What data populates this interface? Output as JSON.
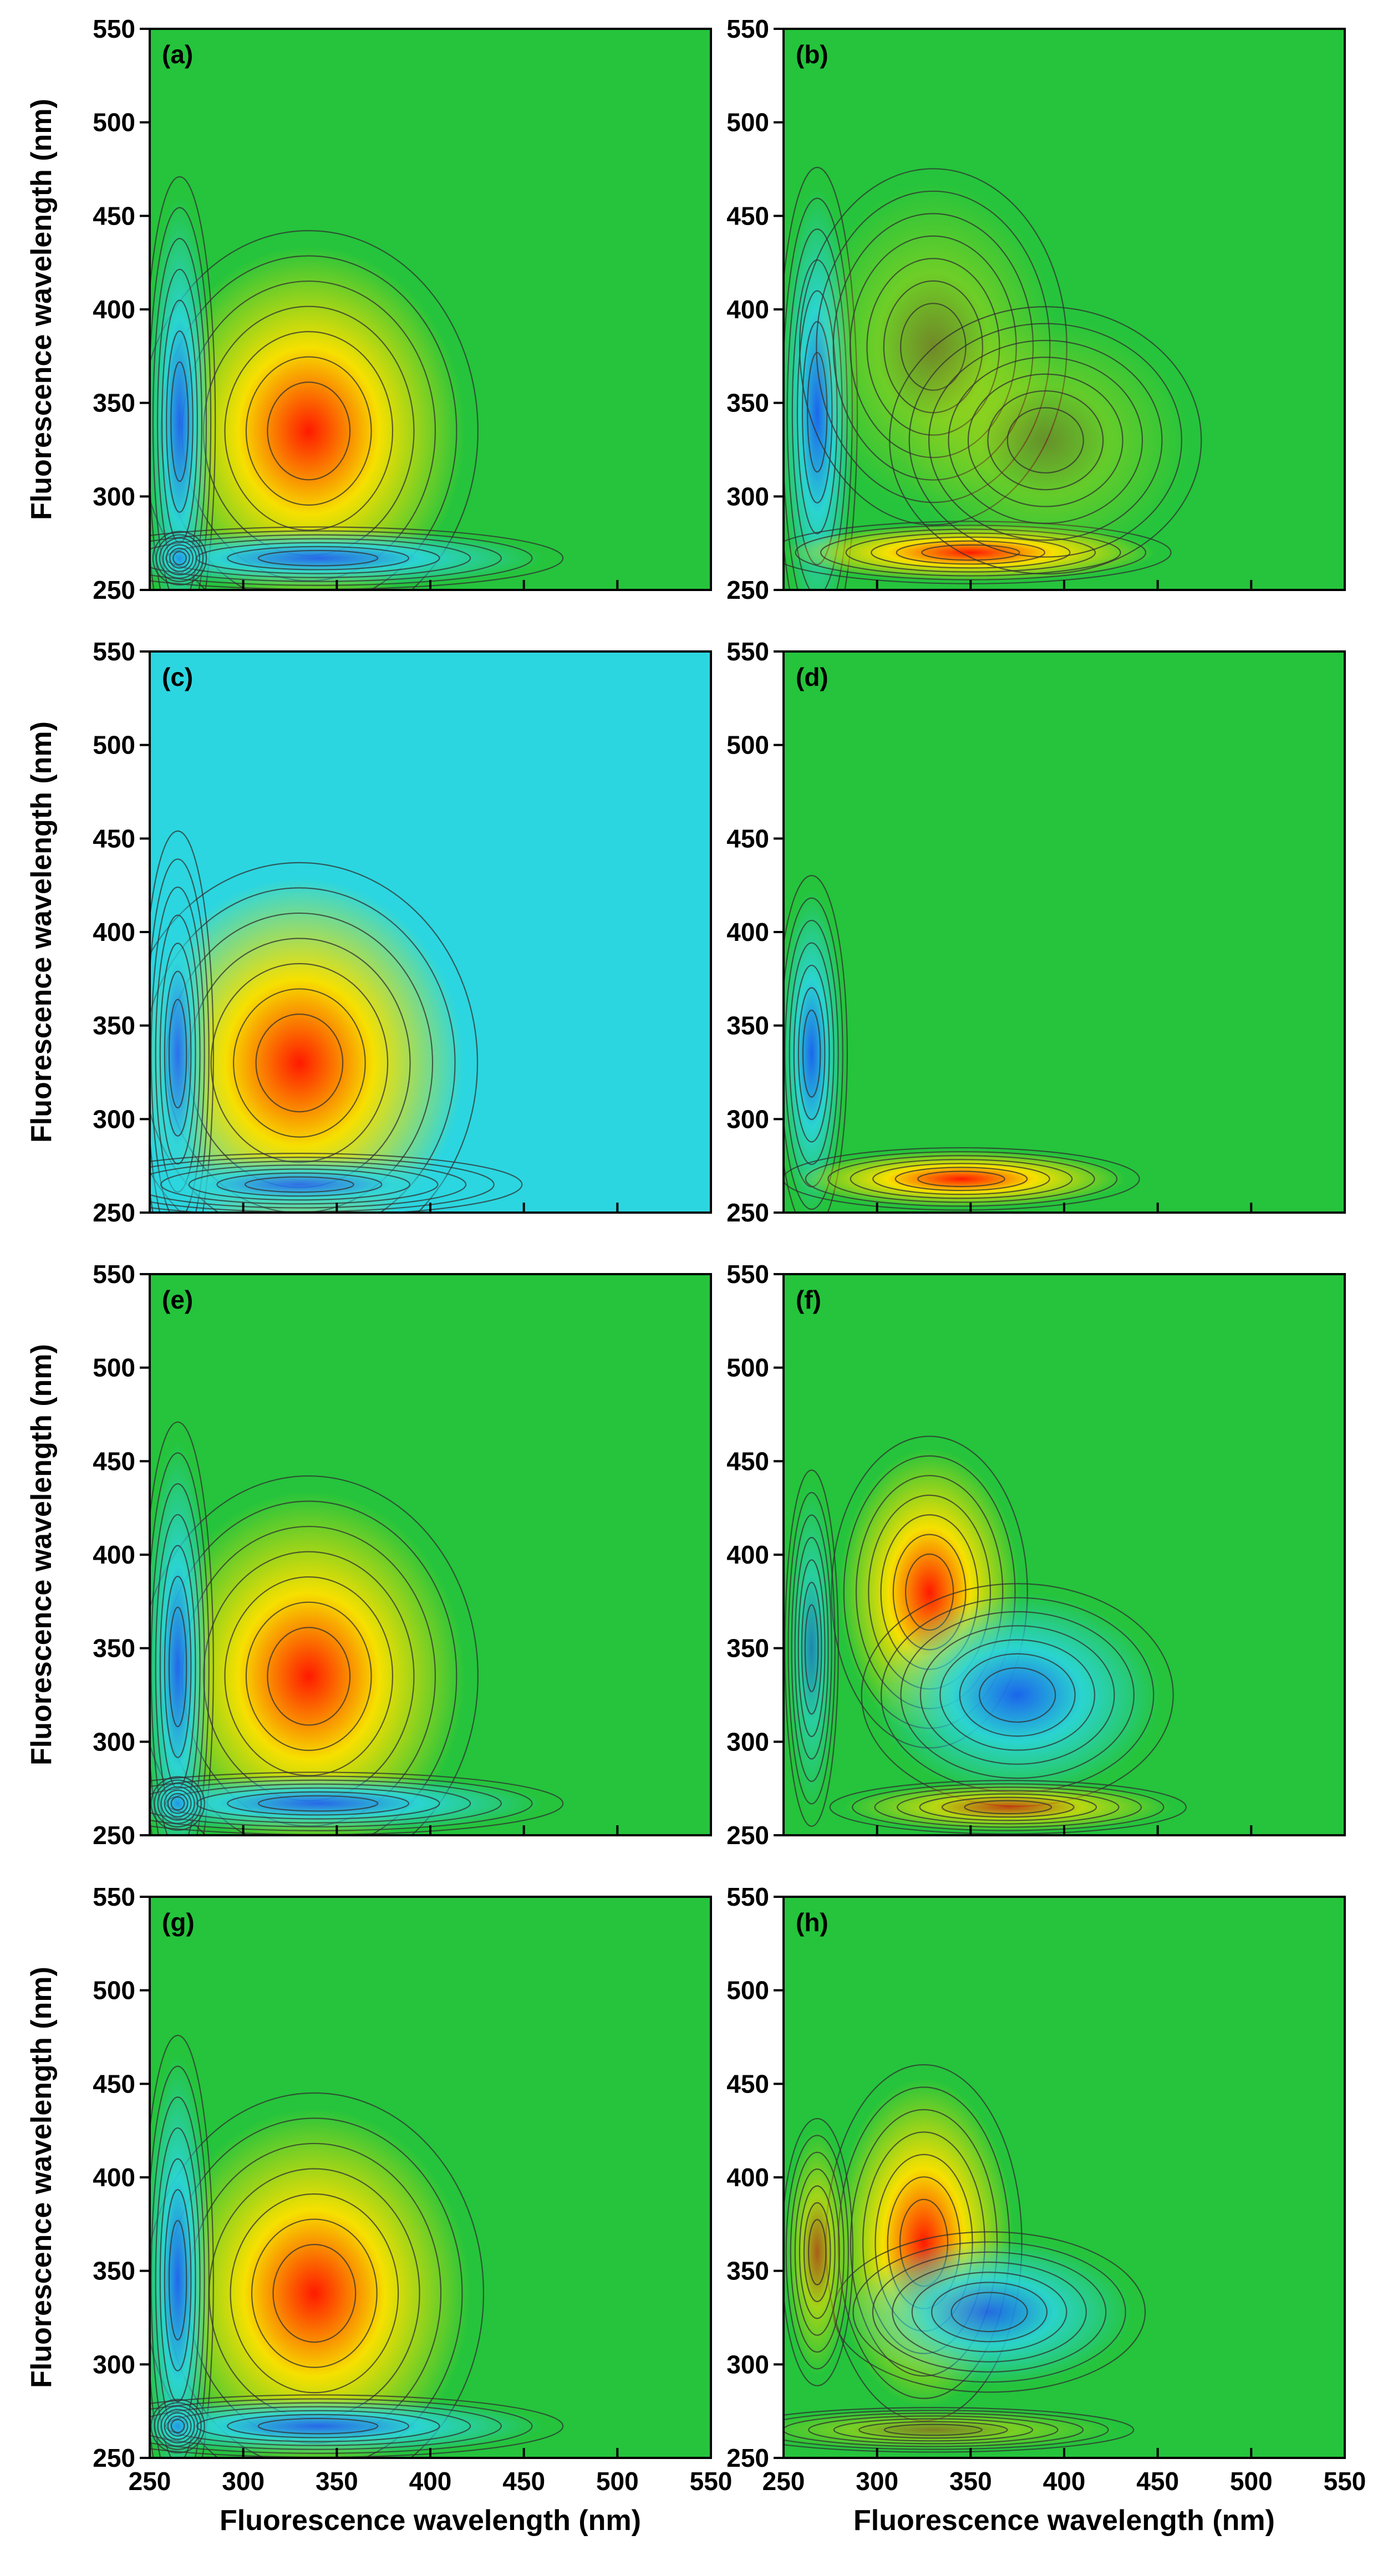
{
  "chart_data": [
    {
      "type": "heatmap",
      "panel": "(a)",
      "colors": [
        "#25c43c",
        "#ff1a00",
        "#f6e000",
        "#1a5cff",
        "#2bd6e0"
      ],
      "xlim": [
        250,
        550
      ],
      "ylim": [
        250,
        550
      ],
      "xticks": [
        250,
        300,
        350,
        400,
        450,
        500,
        550
      ],
      "yticks": [
        250,
        300,
        350,
        400,
        450,
        500,
        550
      ],
      "xlabel": "",
      "ylabel": "Fluorescence wavelength (nm)",
      "features": [
        {
          "sign": "positive",
          "x": 335,
          "y": 335,
          "sx": 38,
          "sy": 45,
          "peak": 1.0
        },
        {
          "sign": "negative",
          "x": 266,
          "y": 340,
          "sx": 8,
          "sy": 55,
          "peak": 0.9
        },
        {
          "sign": "negative",
          "x": 340,
          "y": 267,
          "sx": 55,
          "sy": 7,
          "peak": 0.9
        },
        {
          "sign": "negative",
          "x": 266,
          "y": 267,
          "sx": 6,
          "sy": 6,
          "peak": 0.5
        }
      ]
    },
    {
      "type": "heatmap",
      "panel": "(b)",
      "colors": [
        "#25c43c",
        "#ff1a00",
        "#f6e000",
        "#1a5cff",
        "#2bd6e0"
      ],
      "xlim": [
        250,
        550
      ],
      "ylim": [
        250,
        550
      ],
      "xticks": [
        250,
        300,
        350,
        400,
        450,
        500,
        550
      ],
      "yticks": [
        250,
        300,
        350,
        400,
        450,
        500,
        550
      ],
      "xlabel": "",
      "ylabel": "",
      "features": [
        {
          "sign": "negative",
          "x": 268,
          "y": 345,
          "sx": 9,
          "sy": 55,
          "peak": 0.9
        },
        {
          "sign": "positive",
          "x": 350,
          "y": 270,
          "sx": 45,
          "sy": 7,
          "peak": 1.0
        },
        {
          "sign": "positive",
          "x": 330,
          "y": 380,
          "sx": 30,
          "sy": 40,
          "peak": 0.35
        },
        {
          "sign": "positive",
          "x": 390,
          "y": 330,
          "sx": 35,
          "sy": 30,
          "peak": 0.3
        }
      ]
    },
    {
      "type": "heatmap",
      "panel": "(c)",
      "colors": [
        "#2bd6e0",
        "#ff1a00",
        "#f6e000",
        "#1a5cff",
        "#2bd6e0"
      ],
      "xlim": [
        250,
        550
      ],
      "ylim": [
        250,
        550
      ],
      "xticks": [
        250,
        300,
        350,
        400,
        450,
        500,
        550
      ],
      "yticks": [
        250,
        300,
        350,
        400,
        450,
        500,
        550
      ],
      "xlabel": "",
      "ylabel": "Fluorescence wavelength (nm)",
      "features": [
        {
          "sign": "positive",
          "x": 330,
          "y": 330,
          "sx": 40,
          "sy": 45,
          "peak": 1.0
        },
        {
          "sign": "negative",
          "x": 265,
          "y": 335,
          "sx": 8,
          "sy": 50,
          "peak": 0.85
        },
        {
          "sign": "negative",
          "x": 330,
          "y": 265,
          "sx": 50,
          "sy": 7,
          "peak": 0.85
        }
      ]
    },
    {
      "type": "heatmap",
      "panel": "(d)",
      "colors": [
        "#25c43c",
        "#ff1a00",
        "#f6e000",
        "#1a5cff",
        "#2bd6e0"
      ],
      "xlim": [
        250,
        550
      ],
      "ylim": [
        250,
        550
      ],
      "xticks": [
        250,
        300,
        350,
        400,
        450,
        500,
        550
      ],
      "yticks": [
        250,
        300,
        350,
        400,
        450,
        500,
        550
      ],
      "xlabel": "",
      "ylabel": "",
      "features": [
        {
          "sign": "negative",
          "x": 265,
          "y": 335,
          "sx": 8,
          "sy": 40,
          "peak": 0.9
        },
        {
          "sign": "positive",
          "x": 345,
          "y": 268,
          "sx": 40,
          "sy": 7,
          "peak": 1.0
        }
      ]
    },
    {
      "type": "heatmap",
      "panel": "(e)",
      "colors": [
        "#25c43c",
        "#ff1a00",
        "#f6e000",
        "#1a5cff",
        "#2bd6e0"
      ],
      "xlim": [
        250,
        550
      ],
      "ylim": [
        250,
        550
      ],
      "xticks": [
        250,
        300,
        350,
        400,
        450,
        500,
        550
      ],
      "yticks": [
        250,
        300,
        350,
        400,
        450,
        500,
        550
      ],
      "xlabel": "",
      "ylabel": "Fluorescence wavelength (nm)",
      "features": [
        {
          "sign": "positive",
          "x": 335,
          "y": 335,
          "sx": 38,
          "sy": 45,
          "peak": 1.0
        },
        {
          "sign": "negative",
          "x": 265,
          "y": 340,
          "sx": 8,
          "sy": 55,
          "peak": 0.9
        },
        {
          "sign": "negative",
          "x": 340,
          "y": 267,
          "sx": 55,
          "sy": 7,
          "peak": 0.9
        },
        {
          "sign": "negative",
          "x": 265,
          "y": 267,
          "sx": 6,
          "sy": 6,
          "peak": 0.5
        }
      ]
    },
    {
      "type": "heatmap",
      "panel": "(f)",
      "colors": [
        "#25c43c",
        "#ff1a00",
        "#f6e000",
        "#1a5cff",
        "#2bd6e0"
      ],
      "xlim": [
        250,
        550
      ],
      "ylim": [
        250,
        550
      ],
      "xticks": [
        250,
        300,
        350,
        400,
        450,
        500,
        550
      ],
      "yticks": [
        250,
        300,
        350,
        400,
        450,
        500,
        550
      ],
      "xlabel": "",
      "ylabel": "",
      "features": [
        {
          "sign": "positive",
          "x": 328,
          "y": 380,
          "sx": 22,
          "sy": 35,
          "peak": 1.0
        },
        {
          "sign": "negative",
          "x": 375,
          "y": 325,
          "sx": 35,
          "sy": 25,
          "peak": 0.9
        },
        {
          "sign": "negative",
          "x": 265,
          "y": 350,
          "sx": 6,
          "sy": 40,
          "peak": 0.6
        },
        {
          "sign": "positive",
          "x": 370,
          "y": 265,
          "sx": 40,
          "sy": 6,
          "peak": 0.7
        }
      ]
    },
    {
      "type": "heatmap",
      "panel": "(g)",
      "colors": [
        "#25c43c",
        "#ff1a00",
        "#f6e000",
        "#1a5cff",
        "#2bd6e0"
      ],
      "xlim": [
        250,
        550
      ],
      "ylim": [
        250,
        550
      ],
      "xticks": [
        250,
        300,
        350,
        400,
        450,
        500,
        550
      ],
      "yticks": [
        250,
        300,
        350,
        400,
        450,
        500,
        550
      ],
      "xlabel": "Fluorescence wavelength (nm)",
      "ylabel": "Fluorescence wavelength (nm)",
      "features": [
        {
          "sign": "positive",
          "x": 338,
          "y": 338,
          "sx": 38,
          "sy": 45,
          "peak": 1.0
        },
        {
          "sign": "negative",
          "x": 265,
          "y": 345,
          "sx": 8,
          "sy": 55,
          "peak": 0.9
        },
        {
          "sign": "negative",
          "x": 340,
          "y": 267,
          "sx": 55,
          "sy": 7,
          "peak": 0.9
        },
        {
          "sign": "negative",
          "x": 265,
          "y": 267,
          "sx": 6,
          "sy": 6,
          "peak": 0.5
        }
      ]
    },
    {
      "type": "heatmap",
      "panel": "(h)",
      "colors": [
        "#25c43c",
        "#ff1a00",
        "#f6e000",
        "#1a5cff",
        "#2bd6e0"
      ],
      "xlim": [
        250,
        550
      ],
      "ylim": [
        250,
        550
      ],
      "xticks": [
        250,
        300,
        350,
        400,
        450,
        500,
        550
      ],
      "yticks": [
        250,
        300,
        350,
        400,
        450,
        500,
        550
      ],
      "xlabel": "Fluorescence wavelength (nm)",
      "ylabel": "",
      "features": [
        {
          "sign": "positive",
          "x": 325,
          "y": 365,
          "sx": 22,
          "sy": 40,
          "peak": 1.0
        },
        {
          "sign": "negative",
          "x": 360,
          "y": 328,
          "sx": 35,
          "sy": 18,
          "peak": 0.85
        },
        {
          "sign": "positive",
          "x": 268,
          "y": 360,
          "sx": 8,
          "sy": 30,
          "peak": 0.6
        },
        {
          "sign": "positive",
          "x": 330,
          "y": 265,
          "sx": 45,
          "sy": 5,
          "peak": 0.4
        }
      ]
    }
  ]
}
